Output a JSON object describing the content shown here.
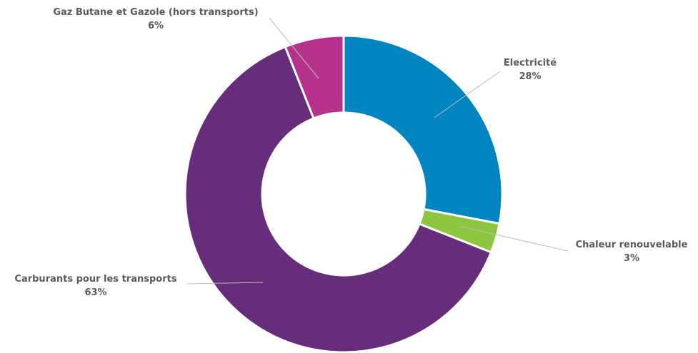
{
  "chart_data": {
    "type": "pie",
    "donut": true,
    "title": "",
    "slices": [
      {
        "label": "Electricité",
        "value": 28,
        "value_label": "28%",
        "color": "#0085c1"
      },
      {
        "label": "Chaleur renouvelable",
        "value": 3,
        "value_label": "3%",
        "color": "#8dc63f"
      },
      {
        "label": "Carburants pour les transports",
        "value": 63,
        "value_label": "63%",
        "color": "#652d7a"
      },
      {
        "label": "Gaz Butane et Gazole (hors transports)",
        "value": 6,
        "value_label": "6%",
        "color": "#b5328b"
      }
    ]
  }
}
